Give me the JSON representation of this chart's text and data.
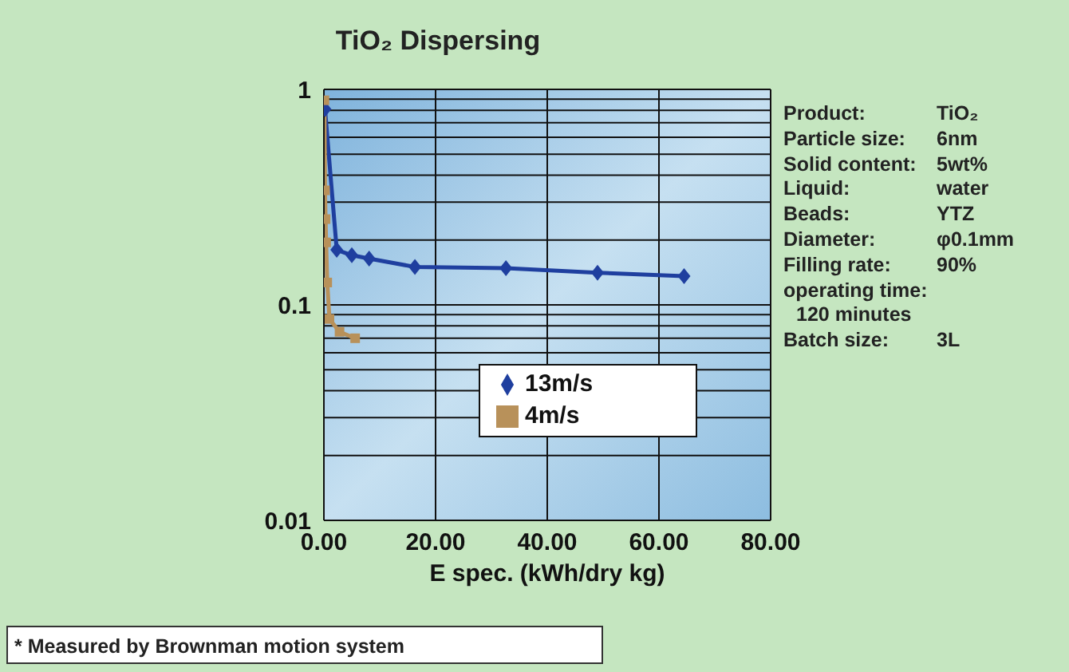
{
  "chart_data": {
    "type": "line",
    "title": "TiO₂ Dispersing",
    "xlabel": "E spec. (kWh/dry kg)",
    "xlim": [
      0,
      80
    ],
    "xticks": [
      {
        "value": 0,
        "label": "0.00"
      },
      {
        "value": 20,
        "label": "20.00"
      },
      {
        "value": 40,
        "label": "40.00"
      },
      {
        "value": 60,
        "label": "60.00"
      },
      {
        "value": 80,
        "label": "80.00"
      }
    ],
    "ylim": [
      0.01,
      1
    ],
    "log": true,
    "yticks": [
      0.01,
      {
        "value": 0.02,
        "label": null
      },
      {
        "value": 0.03,
        "label": null
      },
      {
        "value": 0.04,
        "label": null
      },
      {
        "value": 0.05,
        "label": null
      },
      {
        "value": 0.06,
        "label": null
      },
      {
        "value": 0.07,
        "label": null
      },
      {
        "value": 0.08,
        "label": null
      },
      {
        "value": 0.09,
        "label": null
      },
      0.1,
      {
        "value": 0.2,
        "label": null
      },
      {
        "value": 0.3,
        "label": null
      },
      {
        "value": 0.4,
        "label": null
      },
      {
        "value": 0.5,
        "label": null
      },
      {
        "value": 0.6,
        "label": null
      },
      {
        "value": 0.7,
        "label": null
      },
      {
        "value": 0.8,
        "label": null
      },
      {
        "value": 0.9,
        "label": null
      },
      1
    ],
    "grid": true,
    "legend": "bottom right",
    "series": [
      {
        "name": "13m/s",
        "color": "#1f3f9f",
        "marker": "diamond",
        "x": [
          0.2,
          2.3,
          5.0,
          8.1,
          16.3,
          32.6,
          49,
          64.5
        ],
        "values": [
          0.81,
          0.18,
          0.17,
          0.164,
          0.15,
          0.148,
          0.141,
          0.136
        ]
      },
      {
        "name": "4m/s",
        "color": "#b8915a",
        "marker": "square",
        "x": [
          0.1,
          0.2,
          0.3,
          0.4,
          0.6,
          1.0,
          2.8,
          5.6
        ],
        "values": [
          0.89,
          0.34,
          0.25,
          0.195,
          0.127,
          0.086,
          0.075,
          0.07
        ]
      }
    ],
    "annotations": [
      "Product: TiO₂",
      "Particle size: 6nm",
      "Solid content: 5wt%",
      "Liquid: water",
      "Beads: YTZ",
      "Diameter: φ0.1mm",
      "Filling rate: 90%",
      "operating time:",
      "120 minutes",
      "Batch size: 3L",
      "* Measured by Brownman motion system"
    ]
  }
}
